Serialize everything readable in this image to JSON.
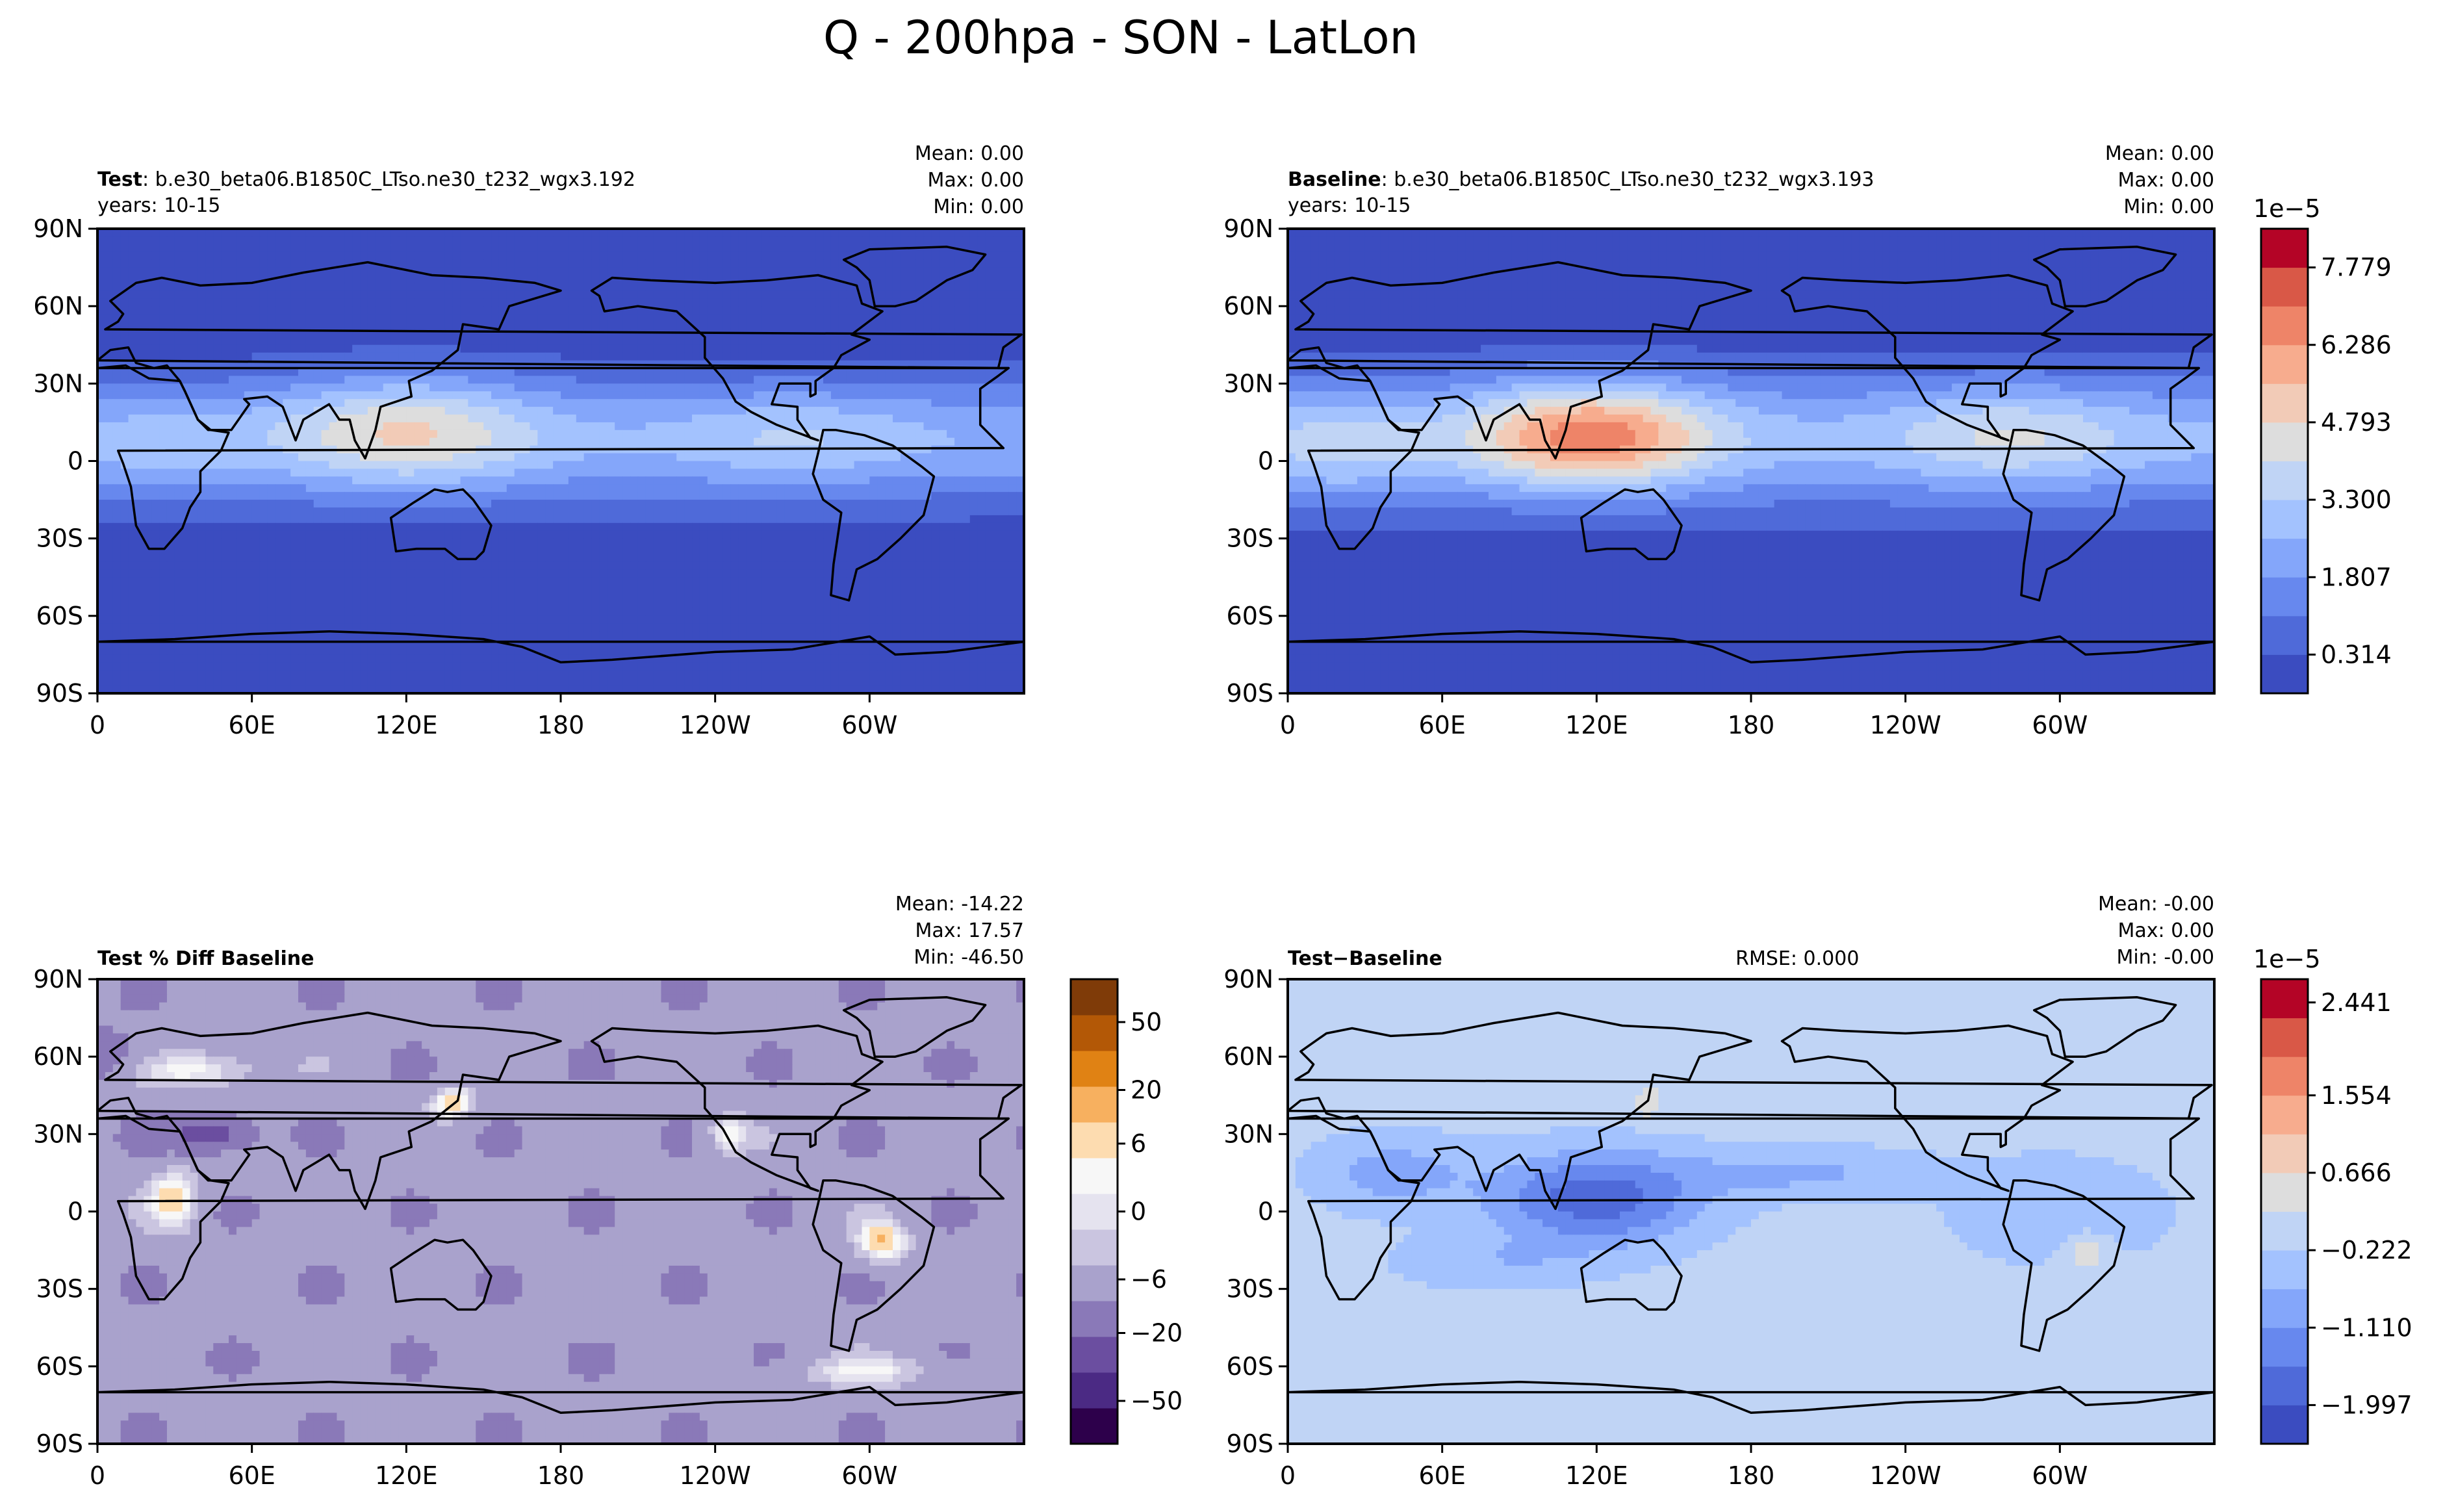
{
  "suptitle": "Q - 200hpa - SON - LatLon",
  "x_ticks": [
    "0",
    "60E",
    "120E",
    "180",
    "120W",
    "60W"
  ],
  "y_ticks": [
    "90N",
    "60N",
    "30N",
    "0",
    "30S",
    "60S",
    "90S"
  ],
  "colors": {
    "coolwarm": [
      "#3b4cc0",
      "#4f6ad9",
      "#6788ee",
      "#84a6fa",
      "#a3c2fe",
      "#c0d4f5",
      "#dddddd",
      "#f2cbb7",
      "#f7ac8e",
      "#ee8468",
      "#d95847",
      "#b40426"
    ],
    "purple_orange": [
      "#2d004b",
      "#4b2a84",
      "#6b4ea0",
      "#8a79b8",
      "#a9a2cc",
      "#cac5e0",
      "#e5e3ef",
      "#f7f7f7",
      "#fddcb0",
      "#f7b05f",
      "#e08214",
      "#b35806",
      "#7f3b08"
    ],
    "land_outline": "#000000"
  },
  "chart_data": [
    {
      "id": "test",
      "type": "heatmap",
      "title_bold": "Test",
      "title_rest": ": b.e30_beta06.B1850C_LTso.ne30_t232_wgx3.192",
      "subtitle": "years: 10-15",
      "stats": [
        "Mean:  0.00",
        "Max:  0.00",
        "Min:  0.00"
      ],
      "rmse": "",
      "xlim": [
        0,
        360
      ],
      "ylim": [
        -90,
        90
      ],
      "colormap": "coolwarm",
      "colorbar": null
    },
    {
      "id": "baseline",
      "type": "heatmap",
      "title_bold": "Baseline",
      "title_rest": ": b.e30_beta06.B1850C_LTso.ne30_t232_wgx3.193",
      "subtitle": "years: 10-15",
      "stats": [
        "Mean:  0.00",
        "Max:  0.00",
        "Min:  0.00"
      ],
      "rmse": "",
      "xlim": [
        0,
        360
      ],
      "ylim": [
        -90,
        90
      ],
      "colormap": "coolwarm",
      "colorbar": {
        "multiplier": "1e−5",
        "levels": 12,
        "tick_labels": [
          "0.314",
          "1.807",
          "3.300",
          "4.793",
          "6.286",
          "7.779"
        ],
        "tick_levels": [
          1,
          3,
          5,
          7,
          9,
          11
        ]
      }
    },
    {
      "id": "pctdiff",
      "type": "heatmap",
      "title_bold": "Test % Diff Baseline",
      "title_rest": "",
      "subtitle": "",
      "stats": [
        "Mean: -14.22",
        "Max: 17.57",
        "Min: -46.50"
      ],
      "rmse": "",
      "xlim": [
        0,
        360
      ],
      "ylim": [
        -90,
        90
      ],
      "colormap": "purple_orange",
      "colorbar": {
        "multiplier": "",
        "levels": 13,
        "tick_labels": [
          "−50",
          "−20",
          "−6",
          "0",
          "6",
          "20",
          "50"
        ],
        "tick_levels": [
          1.2,
          3.1,
          4.6,
          6.5,
          8.4,
          9.9,
          11.8
        ]
      }
    },
    {
      "id": "diff",
      "type": "heatmap",
      "title_bold": "Test−Baseline",
      "title_rest": "",
      "subtitle": "",
      "stats": [
        "Mean: -0.00",
        "Max:  0.00",
        "Min: -0.00"
      ],
      "rmse": "RMSE: 0.000",
      "xlim": [
        0,
        360
      ],
      "ylim": [
        -90,
        90
      ],
      "colormap": "coolwarm",
      "colorbar": {
        "multiplier": "1e−5",
        "levels": 12,
        "tick_labels": [
          "−1.997",
          "−1.110",
          "−0.222",
          "0.666",
          "1.554",
          "2.441"
        ],
        "tick_levels": [
          1,
          3,
          5,
          7,
          9,
          11.4
        ]
      }
    }
  ]
}
